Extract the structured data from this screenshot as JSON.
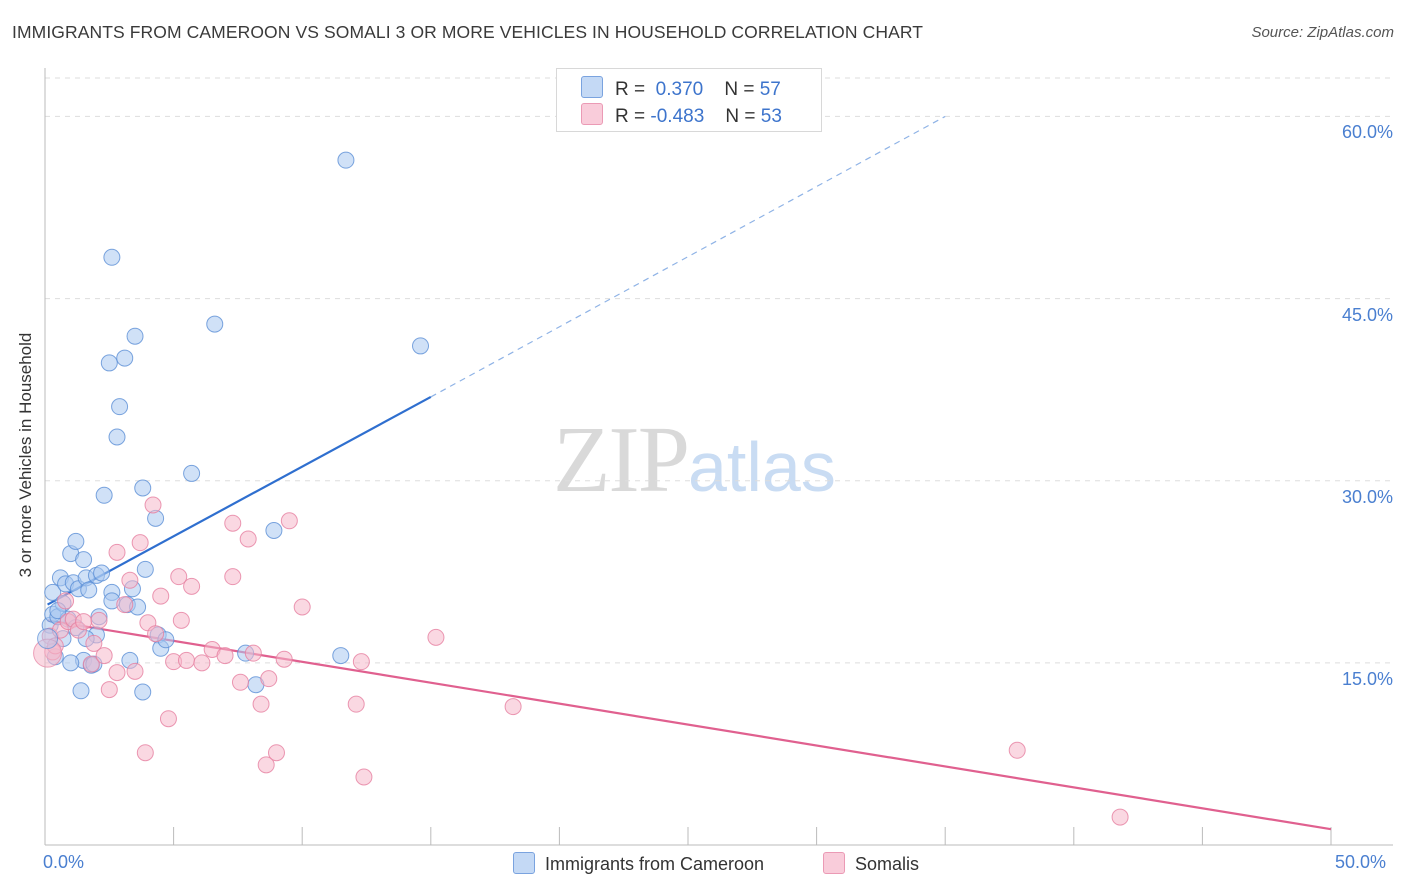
{
  "title": "IMMIGRANTS FROM CAMEROON VS SOMALI 3 OR MORE VEHICLES IN HOUSEHOLD CORRELATION CHART",
  "source": "Source: ZipAtlas.com",
  "watermark": {
    "zip": "ZIP",
    "atlas": "atlas"
  },
  "stats": [
    {
      "r_label": "R =",
      "r_value": "0.370",
      "n_label": "N =",
      "n_value": "57",
      "color": "#aac8f0"
    },
    {
      "r_label": "R =",
      "r_value": "-0.483",
      "n_label": "N =",
      "n_value": "53",
      "color": "#f5b8cb"
    }
  ],
  "colors": {
    "blue_fill": "#aac8f0",
    "blue_stroke": "#5b8fd6",
    "blue_line": "#2f6fcf",
    "pink_fill": "#f5b8cb",
    "pink_stroke": "#e67fa0",
    "pink_line": "#e0608f",
    "grid": "#dddddd",
    "axis_label": "#4a7fd0"
  },
  "chart_data": {
    "type": "scatter",
    "title": "IMMIGRANTS FROM CAMEROON VS SOMALI 3 OR MORE VEHICLES IN HOUSEHOLD CORRELATION CHART",
    "xlabel": "",
    "ylabel": "3 or more Vehicles in Household",
    "xlim": [
      0,
      50
    ],
    "ylim": [
      0,
      63
    ],
    "x_tick_labels": [
      "0.0%",
      "50.0%"
    ],
    "y_ticks": [
      15,
      30,
      45,
      60
    ],
    "y_tick_labels": [
      "15.0%",
      "30.0%",
      "45.0%",
      "60.0%"
    ],
    "grid": true,
    "legend_position": "bottom-center",
    "series": [
      {
        "name": "Immigrants from Cameroon",
        "color": "#aac8f0",
        "trend": {
          "x0": 0.1,
          "y0": 19.8,
          "x1": 15.0,
          "y1": 36.9,
          "dashed_to_x": 35,
          "dashed_to_y": 60.0
        },
        "points": [
          [
            0.2,
            18.1
          ],
          [
            0.3,
            19.0
          ],
          [
            0.3,
            20.8
          ],
          [
            0.5,
            18.8
          ],
          [
            0.6,
            22.0
          ],
          [
            0.7,
            19.9
          ],
          [
            0.7,
            17.0
          ],
          [
            0.8,
            21.5
          ],
          [
            0.9,
            18.6
          ],
          [
            1.0,
            24.0
          ],
          [
            1.1,
            21.6
          ],
          [
            1.2,
            25.0
          ],
          [
            1.2,
            17.9
          ],
          [
            1.3,
            21.1
          ],
          [
            1.4,
            12.7
          ],
          [
            1.5,
            23.5
          ],
          [
            1.5,
            15.2
          ],
          [
            1.6,
            22.0
          ],
          [
            1.7,
            21.0
          ],
          [
            1.8,
            14.8
          ],
          [
            1.9,
            14.9
          ],
          [
            2.0,
            22.2
          ],
          [
            2.0,
            17.3
          ],
          [
            2.1,
            18.8
          ],
          [
            2.2,
            22.4
          ],
          [
            2.3,
            28.8
          ],
          [
            2.5,
            39.7
          ],
          [
            2.6,
            20.8
          ],
          [
            2.6,
            20.1
          ],
          [
            2.6,
            48.4
          ],
          [
            2.8,
            33.6
          ],
          [
            2.9,
            36.1
          ],
          [
            3.1,
            40.1
          ],
          [
            3.2,
            19.8
          ],
          [
            3.3,
            15.2
          ],
          [
            3.4,
            21.1
          ],
          [
            3.5,
            41.9
          ],
          [
            3.6,
            19.6
          ],
          [
            3.8,
            29.4
          ],
          [
            3.8,
            12.6
          ],
          [
            3.9,
            22.7
          ],
          [
            4.3,
            26.9
          ],
          [
            4.4,
            17.3
          ],
          [
            4.5,
            16.2
          ],
          [
            4.7,
            16.9
          ],
          [
            5.7,
            30.6
          ],
          [
            6.6,
            42.9
          ],
          [
            7.8,
            15.8
          ],
          [
            8.2,
            13.2
          ],
          [
            8.9,
            25.9
          ],
          [
            11.5,
            15.6
          ],
          [
            11.7,
            56.4
          ],
          [
            14.6,
            41.1
          ],
          [
            0.4,
            15.5
          ],
          [
            1.0,
            15.0
          ],
          [
            0.5,
            19.3
          ],
          [
            1.6,
            17.0
          ]
        ]
      },
      {
        "name": "Somalis",
        "color": "#f5b8cb",
        "trend": {
          "x0": 0.1,
          "y0": 18.5,
          "x1": 50,
          "y1": 1.3
        },
        "points": [
          [
            0.2,
            17.2
          ],
          [
            0.3,
            15.9
          ],
          [
            0.4,
            16.4
          ],
          [
            0.6,
            17.7
          ],
          [
            0.8,
            20.1
          ],
          [
            0.9,
            18.4
          ],
          [
            1.1,
            18.6
          ],
          [
            1.3,
            17.7
          ],
          [
            1.5,
            18.4
          ],
          [
            1.8,
            14.9
          ],
          [
            1.9,
            16.6
          ],
          [
            2.1,
            18.5
          ],
          [
            2.3,
            15.6
          ],
          [
            2.5,
            12.8
          ],
          [
            2.8,
            24.1
          ],
          [
            2.8,
            14.2
          ],
          [
            3.1,
            19.8
          ],
          [
            3.3,
            21.8
          ],
          [
            3.5,
            14.3
          ],
          [
            3.7,
            24.9
          ],
          [
            3.9,
            7.6
          ],
          [
            4.0,
            18.3
          ],
          [
            4.2,
            28.0
          ],
          [
            4.3,
            17.4
          ],
          [
            4.5,
            20.5
          ],
          [
            4.8,
            10.4
          ],
          [
            5.0,
            15.1
          ],
          [
            5.2,
            22.1
          ],
          [
            5.3,
            18.5
          ],
          [
            5.5,
            15.2
          ],
          [
            5.7,
            21.3
          ],
          [
            6.1,
            15.0
          ],
          [
            6.5,
            16.1
          ],
          [
            7.0,
            15.6
          ],
          [
            7.3,
            26.5
          ],
          [
            7.3,
            22.1
          ],
          [
            7.6,
            13.4
          ],
          [
            7.9,
            25.2
          ],
          [
            8.1,
            15.8
          ],
          [
            8.4,
            11.6
          ],
          [
            8.6,
            6.6
          ],
          [
            8.7,
            13.7
          ],
          [
            9.0,
            7.6
          ],
          [
            9.3,
            15.3
          ],
          [
            9.5,
            26.7
          ],
          [
            10.0,
            19.6
          ],
          [
            12.1,
            11.6
          ],
          [
            12.3,
            15.1
          ],
          [
            12.4,
            5.6
          ],
          [
            15.2,
            17.1
          ],
          [
            18.2,
            11.4
          ],
          [
            37.8,
            7.8
          ],
          [
            41.8,
            2.3
          ]
        ]
      }
    ]
  },
  "legend": {
    "items": [
      {
        "label": "Immigrants from Cameroon",
        "color": "#aac8f0"
      },
      {
        "label": "Somalis",
        "color": "#f5b8cb"
      }
    ]
  }
}
